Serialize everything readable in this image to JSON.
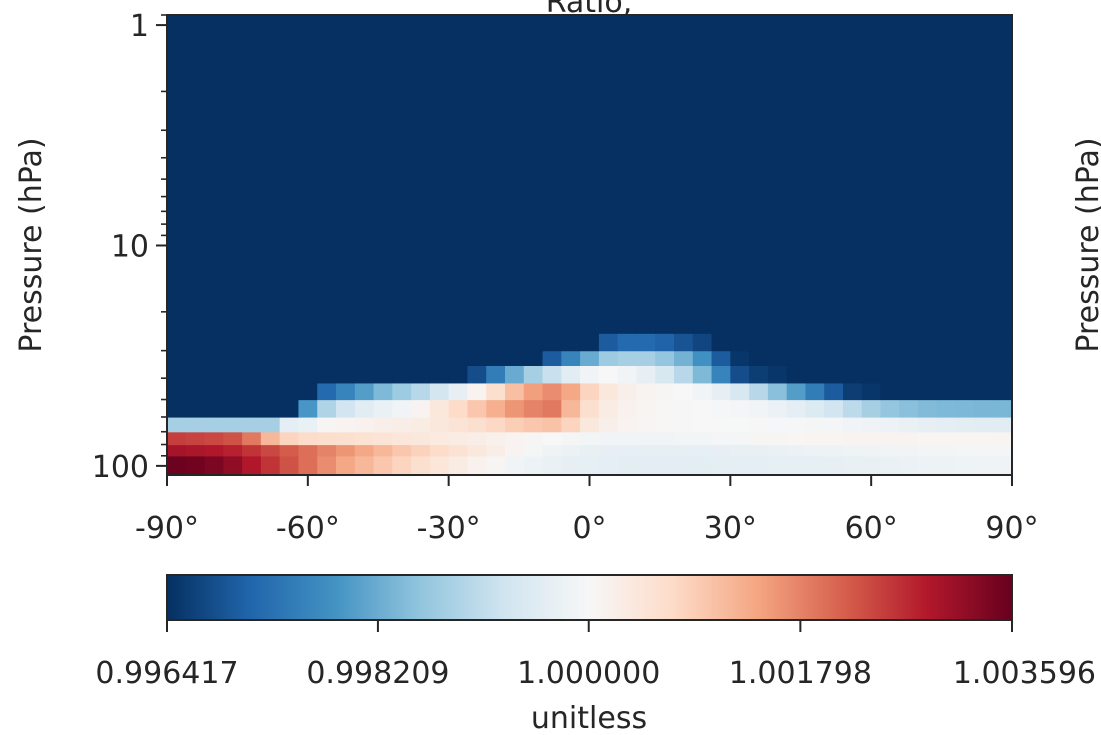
{
  "chart_data": {
    "type": "heatmap",
    "title": "Ratio, ",
    "xlabel": "",
    "ylabel": "Pressure (hPa)",
    "right_ylabel": "Pressure (hPa)",
    "x_ticks": [
      "-90°",
      "-60°",
      "-30°",
      "0°",
      "30°",
      "60°",
      "90°"
    ],
    "x_tick_values": [
      -90,
      -60,
      -30,
      0,
      30,
      60,
      90
    ],
    "xlim": [
      -90,
      90
    ],
    "y_scale": "log",
    "ylim": [
      110,
      0.9
    ],
    "y_ticks": [
      "1",
      "10",
      "100"
    ],
    "y_tick_values": [
      1,
      10,
      100
    ],
    "grid": false,
    "colormap": "RdBu_r",
    "colorbar": {
      "label": "unitless",
      "ticks": [
        "0.996417",
        "0.998209",
        "1.000000",
        "1.001798",
        "1.003596"
      ],
      "tick_values": [
        0.996417,
        0.998209,
        1.0,
        1.001798,
        1.003596
      ],
      "range": [
        0.996417,
        1.003596
      ]
    },
    "lat_edges": [
      -90,
      -86,
      -82,
      -78,
      -74,
      -70,
      -66,
      -62,
      -58,
      -54,
      -50,
      -46,
      -42,
      -38,
      -34,
      -30,
      -26,
      -22,
      -18,
      -14,
      -10,
      -6,
      -2,
      2,
      6,
      10,
      14,
      18,
      22,
      26,
      30,
      34,
      38,
      42,
      46,
      50,
      54,
      58,
      62,
      66,
      70,
      74,
      78,
      82,
      86,
      90
    ],
    "p_edges": [
      110,
      90,
      80,
      70,
      60,
      50,
      42,
      35,
      30,
      25,
      0.9
    ],
    "values": [
      [
        1.00355,
        1.0035,
        1.0034,
        1.0032,
        1.0029,
        1.0026,
        1.0023,
        1.002,
        1.0017,
        1.0014,
        1.0012,
        1.001,
        1.0008,
        1.0006,
        1.00045,
        1.0003,
        1.00015,
        1.00005,
        0.9999,
        0.9998,
        0.99975,
        0.9997,
        0.99968,
        0.99965,
        0.99963,
        0.99962,
        0.99962,
        0.99962,
        0.99963,
        0.99964,
        0.99965,
        0.99966,
        0.99967,
        0.99968,
        0.99969,
        0.9997,
        0.99972,
        0.99974,
        0.99976,
        0.99978,
        0.9998,
        0.99982,
        0.99984,
        0.99985,
        0.99986
      ],
      [
        1.003,
        1.00295,
        1.0029,
        1.0028,
        1.0026,
        1.0024,
        1.0022,
        1.002,
        1.0018,
        1.0016,
        1.0014,
        1.0012,
        1.001,
        1.00085,
        1.0007,
        1.00055,
        1.0004,
        1.00025,
        1.0001,
        0.99995,
        0.99985,
        0.99978,
        0.99972,
        0.9997,
        0.99968,
        0.99967,
        0.99967,
        0.99968,
        0.99969,
        0.9997,
        0.99972,
        0.99974,
        0.99976,
        0.99978,
        0.9998,
        0.99982,
        0.99984,
        0.99986,
        0.99988,
        0.9999,
        0.99991,
        0.99992,
        0.99993,
        0.99993,
        0.99994
      ],
      [
        1.0025,
        1.00245,
        1.0024,
        1.0023,
        1.0019,
        1.0012,
        1.0008,
        1.0007,
        1.00065,
        1.0006,
        1.00055,
        1.0005,
        1.00045,
        1.0004,
        1.00035,
        1.0003,
        1.00025,
        1.00018,
        1.0001,
        1.00005,
        1.0,
        0.99995,
        0.99992,
        0.9999,
        0.99989,
        0.99989,
        0.9999,
        0.99991,
        0.99992,
        0.99993,
        0.99994,
        1.00005,
        1.00006,
        1.00007,
        1.00008,
        1.00009,
        1.0001,
        1.0001,
        1.0001,
        1.0001,
        1.00009,
        1.00008,
        1.00008,
        1.00008,
        1.00008
      ],
      [
        0.9988,
        0.9988,
        0.9988,
        0.9988,
        0.9988,
        0.9988,
        0.99965,
        0.99975,
        1.00005,
        1.0001,
        1.00015,
        1.0002,
        1.00025,
        1.0003,
        1.0004,
        1.0005,
        1.0006,
        1.00075,
        1.0009,
        1.001,
        1.00105,
        1.0008,
        1.0004,
        1.0002,
        1.0001,
        1.00005,
        1.00003,
        1.00002,
        1.00001,
        1.0,
        0.99999,
        0.99998,
        0.99997,
        0.99996,
        0.99995,
        0.99993,
        0.9999,
        0.99985,
        0.9998,
        0.99975,
        0.9997,
        0.99966,
        0.99963,
        0.99961,
        0.9996
      ],
      [
        0.99642,
        0.99642,
        0.99642,
        0.99642,
        0.99642,
        0.99642,
        0.99642,
        0.9979,
        0.9989,
        0.9993,
        0.9996,
        0.99975,
        0.9999,
        1.0001,
        1.0004,
        1.0007,
        1.001,
        1.0013,
        1.0016,
        1.0018,
        1.0019,
        1.0012,
        1.0006,
        1.0003,
        1.00015,
        1.00008,
        1.00004,
        1.00002,
        1.0,
        0.99997,
        0.99993,
        0.99987,
        0.99978,
        0.99965,
        0.9995,
        0.9993,
        0.99905,
        0.9988,
        0.9986,
        0.9985,
        0.99842,
        0.9984,
        0.99838,
        0.99836,
        0.99835
      ],
      [
        0.99642,
        0.99642,
        0.99642,
        0.99642,
        0.99642,
        0.99642,
        0.99642,
        0.99642,
        0.9972,
        0.9976,
        0.998,
        0.9984,
        0.9987,
        0.999,
        0.99935,
        0.9997,
        1.0001,
        1.0006,
        1.0011,
        1.0015,
        1.0017,
        1.0014,
        1.0008,
        1.0004,
        1.0002,
        1.0001,
        1.00005,
        1.0,
        0.9999,
        0.9997,
        0.9994,
        0.999,
        0.9985,
        0.998,
        0.9975,
        0.997,
        0.9966,
        0.9965,
        0.99642,
        0.99642,
        0.99642,
        0.99642,
        0.99642,
        0.99642,
        0.99642
      ],
      [
        0.99642,
        0.99642,
        0.99642,
        0.99642,
        0.99642,
        0.99642,
        0.99642,
        0.99642,
        0.99642,
        0.99642,
        0.99642,
        0.99642,
        0.99642,
        0.99642,
        0.99642,
        0.99642,
        0.9968,
        0.9975,
        0.9982,
        0.9988,
        0.9992,
        0.9996,
        0.9999,
        1.0,
        0.9999,
        0.9997,
        0.9994,
        0.999,
        0.9984,
        0.9976,
        0.9968,
        0.9966,
        0.9965,
        0.99642,
        0.99642,
        0.99642,
        0.99642,
        0.99642,
        0.99642,
        0.99642,
        0.99642,
        0.99642,
        0.99642,
        0.99642,
        0.99642
      ],
      [
        0.99642,
        0.99642,
        0.99642,
        0.99642,
        0.99642,
        0.99642,
        0.99642,
        0.99642,
        0.99642,
        0.99642,
        0.99642,
        0.99642,
        0.99642,
        0.99642,
        0.99642,
        0.99642,
        0.99642,
        0.99642,
        0.99642,
        0.99642,
        0.997,
        0.9976,
        0.9982,
        0.9987,
        0.9988,
        0.9988,
        0.9986,
        0.9983,
        0.9978,
        0.997,
        0.9965,
        0.99642,
        0.99642,
        0.99642,
        0.99642,
        0.99642,
        0.99642,
        0.99642,
        0.99642,
        0.99642,
        0.99642,
        0.99642,
        0.99642,
        0.99642,
        0.99642
      ],
      [
        0.99642,
        0.99642,
        0.99642,
        0.99642,
        0.99642,
        0.99642,
        0.99642,
        0.99642,
        0.99642,
        0.99642,
        0.99642,
        0.99642,
        0.99642,
        0.99642,
        0.99642,
        0.99642,
        0.99642,
        0.99642,
        0.99642,
        0.99642,
        0.99642,
        0.99642,
        0.99642,
        0.997,
        0.9972,
        0.9972,
        0.9971,
        0.9969,
        0.9967,
        0.99642,
        0.99642,
        0.99642,
        0.99642,
        0.99642,
        0.99642,
        0.99642,
        0.99642,
        0.99642,
        0.99642,
        0.99642,
        0.99642,
        0.99642,
        0.99642,
        0.99642,
        0.99642
      ],
      [
        0.99642,
        0.99642,
        0.99642,
        0.99642,
        0.99642,
        0.99642,
        0.99642,
        0.99642,
        0.99642,
        0.99642,
        0.99642,
        0.99642,
        0.99642,
        0.99642,
        0.99642,
        0.99642,
        0.99642,
        0.99642,
        0.99642,
        0.99642,
        0.99642,
        0.99642,
        0.99642,
        0.99642,
        0.99642,
        0.99642,
        0.99642,
        0.99642,
        0.99642,
        0.99642,
        0.99642,
        0.99642,
        0.99642,
        0.99642,
        0.99642,
        0.99642,
        0.99642,
        0.99642,
        0.99642,
        0.99642,
        0.99642,
        0.99642,
        0.99642,
        0.99642,
        0.99642
      ]
    ]
  }
}
